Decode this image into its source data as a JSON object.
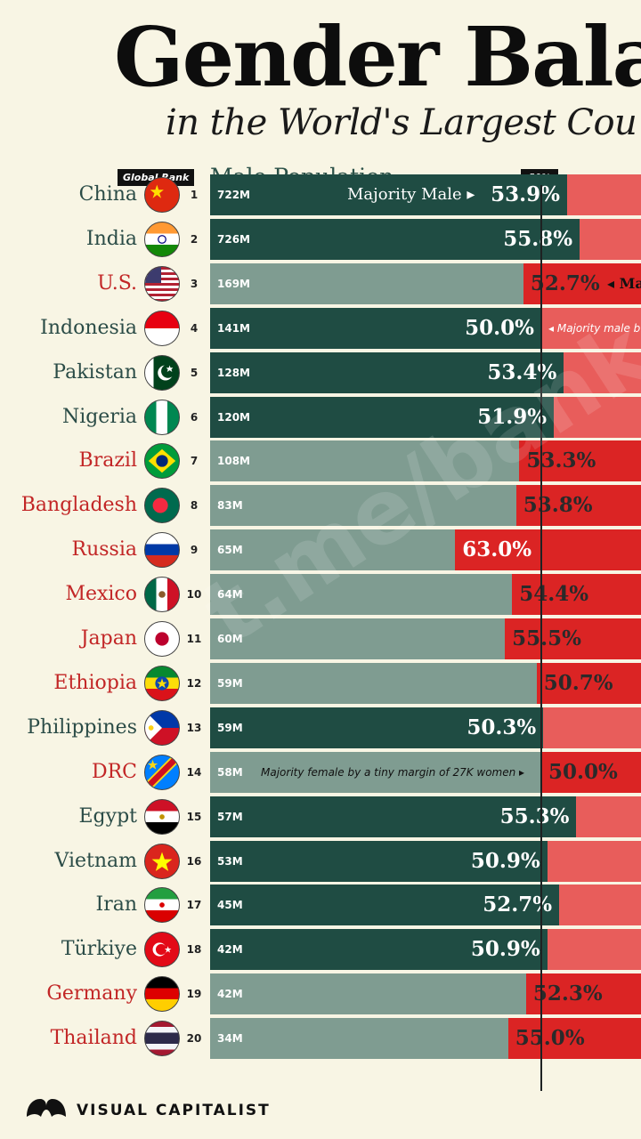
{
  "chart_data": {
    "type": "bar",
    "title": "Gender Bala",
    "subtitle": "in the World's Largest Cou",
    "rank_header": "Global Rank",
    "axis_label": "Male Population",
    "reference_label": "50%",
    "reference_value": 50,
    "brand": "VISUAL CAPITALIST",
    "watermark": "t.me/bank",
    "colors": {
      "male_majority": "#1f4c43",
      "male_minority": "#7f9c91",
      "female_majority": "#db2424",
      "female_minority": "#e85d5b",
      "label_majority_male": "#2b4c47",
      "label_majority_female": "#c22626"
    },
    "rows": [
      {
        "country": "China",
        "rank": "1",
        "pop": "722M",
        "pct": 53.9,
        "pct_label": "53.9%",
        "majority": "male",
        "note": "Majority Male"
      },
      {
        "country": "India",
        "rank": "2",
        "pop": "726M",
        "pct": 55.8,
        "pct_label": "55.8%",
        "majority": "male"
      },
      {
        "country": "U.S.",
        "rank": "3",
        "pop": "169M",
        "pct": 52.7,
        "pct_label": "52.7%",
        "majority": "female",
        "note": "Ma"
      },
      {
        "country": "Indonesia",
        "rank": "4",
        "pop": "141M",
        "pct": 50.0,
        "pct_label": "50.0%",
        "majority": "male",
        "note": "Majority male b"
      },
      {
        "country": "Pakistan",
        "rank": "5",
        "pop": "128M",
        "pct": 53.4,
        "pct_label": "53.4%",
        "majority": "male"
      },
      {
        "country": "Nigeria",
        "rank": "6",
        "pop": "120M",
        "pct": 51.9,
        "pct_label": "51.9%",
        "majority": "male"
      },
      {
        "country": "Brazil",
        "rank": "7",
        "pop": "108M",
        "pct": 53.3,
        "pct_label": "53.3%",
        "majority": "female"
      },
      {
        "country": "Bangladesh",
        "rank": "8",
        "pop": "83M",
        "pct": 53.8,
        "pct_label": "53.8%",
        "majority": "female"
      },
      {
        "country": "Russia",
        "rank": "9",
        "pop": "65M",
        "pct": 63.0,
        "pct_label": "63.0%",
        "majority": "female"
      },
      {
        "country": "Mexico",
        "rank": "10",
        "pop": "64M",
        "pct": 54.4,
        "pct_label": "54.4%",
        "majority": "female"
      },
      {
        "country": "Japan",
        "rank": "11",
        "pop": "60M",
        "pct": 55.5,
        "pct_label": "55.5%",
        "majority": "female"
      },
      {
        "country": "Ethiopia",
        "rank": "12",
        "pop": "59M",
        "pct": 50.7,
        "pct_label": "50.7%",
        "majority": "female"
      },
      {
        "country": "Philippines",
        "rank": "13",
        "pop": "59M",
        "pct": 50.3,
        "pct_label": "50.3%",
        "majority": "male"
      },
      {
        "country": "DRC",
        "rank": "14",
        "pop": "58M",
        "pct": 50.0,
        "pct_label": "50.0%",
        "majority": "female",
        "note": "Majority female by a tiny margin of 27K women"
      },
      {
        "country": "Egypt",
        "rank": "15",
        "pop": "57M",
        "pct": 55.3,
        "pct_label": "55.3%",
        "majority": "male"
      },
      {
        "country": "Vietnam",
        "rank": "16",
        "pop": "53M",
        "pct": 50.9,
        "pct_label": "50.9%",
        "majority": "male"
      },
      {
        "country": "Iran",
        "rank": "17",
        "pop": "45M",
        "pct": 52.7,
        "pct_label": "52.7%",
        "majority": "male"
      },
      {
        "country": "Türkiye",
        "rank": "18",
        "pop": "42M",
        "pct": 50.9,
        "pct_label": "50.9%",
        "majority": "male"
      },
      {
        "country": "Germany",
        "rank": "19",
        "pop": "42M",
        "pct": 52.3,
        "pct_label": "52.3%",
        "majority": "female"
      },
      {
        "country": "Thailand",
        "rank": "20",
        "pop": "34M",
        "pct": 55.0,
        "pct_label": "55.0%",
        "majority": "female"
      }
    ]
  }
}
